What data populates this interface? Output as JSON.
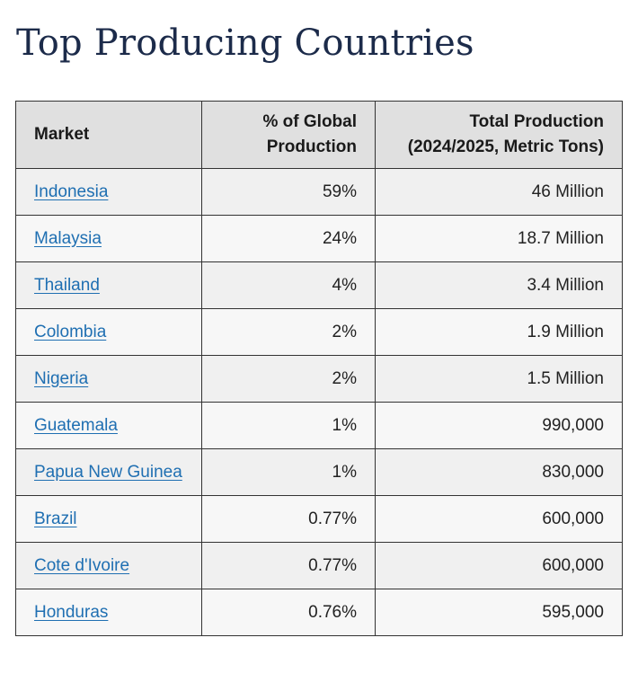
{
  "title": "Top Producing Countries",
  "table": {
    "headers": {
      "market": "Market",
      "share_line1": "% of Global",
      "share_line2": "Production",
      "total_line1": "Total Production",
      "total_line2": "(2024/2025, Metric Tons)"
    },
    "rows": [
      {
        "market": "Indonesia",
        "share": "59%",
        "total": "46 Million"
      },
      {
        "market": "Malaysia",
        "share": "24%",
        "total": "18.7 Million"
      },
      {
        "market": "Thailand",
        "share": "4%",
        "total": "3.4 Million"
      },
      {
        "market": "Colombia",
        "share": "2%",
        "total": "1.9 Million"
      },
      {
        "market": "Nigeria",
        "share": "2%",
        "total": "1.5 Million"
      },
      {
        "market": "Guatemala",
        "share": "1%",
        "total": "990,000"
      },
      {
        "market": "Papua New Guinea",
        "share": "1%",
        "total": "830,000"
      },
      {
        "market": "Brazil",
        "share": "0.77%",
        "total": "600,000"
      },
      {
        "market": "Cote d'Ivoire",
        "share": "0.77%",
        "total": "600,000"
      },
      {
        "market": "Honduras",
        "share": "0.76%",
        "total": "595,000"
      }
    ]
  },
  "colors": {
    "title": "#1c2b4a",
    "link": "#1f6fb2",
    "header_bg": "#e0e0e0",
    "row_bg_odd": "#f0f0f0",
    "row_bg_even": "#f7f7f7",
    "border": "#333333"
  }
}
